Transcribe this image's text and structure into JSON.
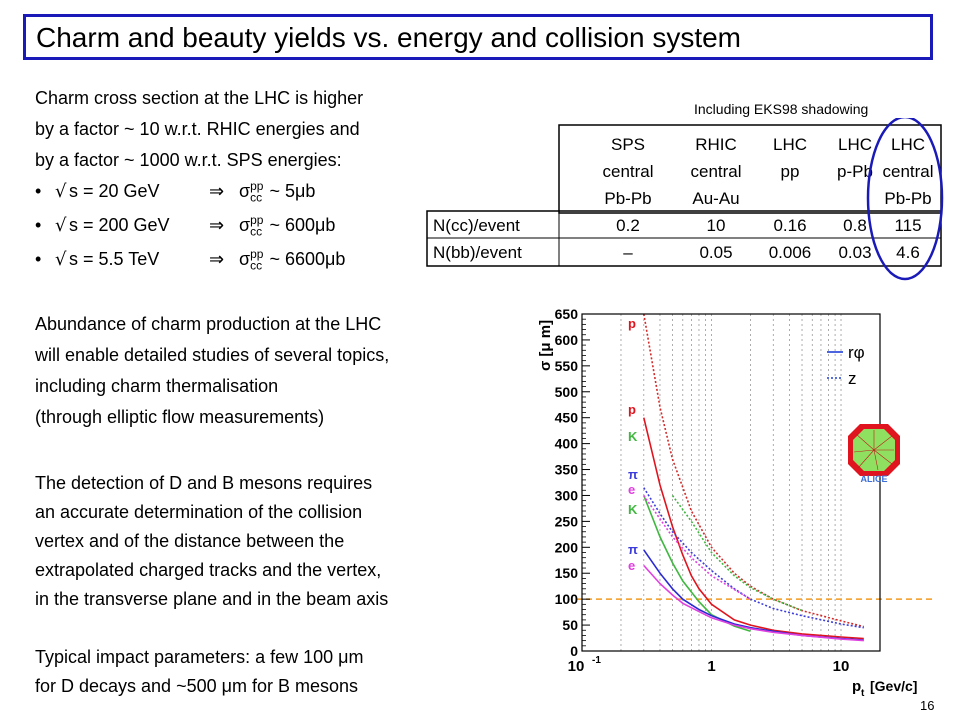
{
  "title": "Charm and beauty yields vs. energy and collision system",
  "intro_lines": [
    "Charm cross section at the LHC is higher",
    "by a factor ~ 10 w.r.t. RHIC energies and",
    "by a factor ~ 1000 w.r.t. SPS energies:"
  ],
  "bullets": [
    {
      "energy": "s = 20 GeV",
      "sub": "cc",
      "sup": "pp",
      "value": "~ 5 ",
      "unit": "b"
    },
    {
      "energy": "s = 200 GeV",
      "sub": "cc",
      "sup": "pp",
      "value": "~ 600 ",
      "unit": "b"
    },
    {
      "energy": "s = 5.5 TeV",
      "sub": "cc",
      "sup": "pp",
      "value": "~ 6600 ",
      "unit": "b"
    }
  ],
  "abundance_lines": [
    "Abundance of charm production at the LHC",
    "will enable detailed studies of several topics,",
    "including charm thermalisation",
    "(through elliptic flow measurements)"
  ],
  "detection_lines": [
    "The detection of D and B mesons requires",
    "an accurate determination of the collision",
    "vertex and of the distance between the",
    "extrapolated charged tracks and the vertex,",
    "in the transverse plane and in the beam axis"
  ],
  "impact_lines": [
    {
      "pre": "Typical impact parameters: a few 100 ",
      "post": "m"
    },
    {
      "pre": "for D decays and ~500 ",
      "post": "m for B mesons"
    }
  ],
  "eks_note": "Including EKS98 shadowing",
  "table": {
    "headers": [
      [
        "SPS",
        "central",
        "Pb-Pb"
      ],
      [
        "RHIC",
        "central",
        "Au-Au"
      ],
      [
        "LHC",
        "pp",
        ""
      ],
      [
        "LHC",
        "p-Pb",
        ""
      ],
      [
        "LHC",
        "central",
        "Pb-Pb"
      ]
    ],
    "rows": [
      {
        "label": "N(cc)/event",
        "values": [
          "0.2",
          "10",
          "0.16",
          "0.8",
          "115"
        ]
      },
      {
        "label": "N(bb)/event",
        "values": [
          "–",
          "0.05",
          "0.006",
          "0.03",
          "4.6"
        ]
      }
    ]
  },
  "slide_number": "16",
  "chart_data": {
    "type": "line",
    "xlabel": "p",
    "xlabel_sub": "t",
    "xlabel_unit": "[Gev/c]",
    "ylabel": "σ [μ m]",
    "x_scale": "log",
    "xlim": [
      0.1,
      20
    ],
    "ylim": [
      0,
      650
    ],
    "x_tick_labels": [
      "10",
      "1",
      "10"
    ],
    "x_tick_sup": "-1",
    "y_ticks": [
      0,
      50,
      100,
      150,
      200,
      250,
      300,
      350,
      400,
      450,
      500,
      550,
      600,
      650
    ],
    "grid": "vertical dotted",
    "legend": [
      {
        "name": "rφ",
        "style": "solid",
        "color": "#1f3fd6"
      },
      {
        "name": "z",
        "style": "dotted",
        "color": "#1f3fd6"
      }
    ],
    "reference_line": {
      "y": 100,
      "color": "#f39a1e",
      "style": "dashed"
    },
    "series": [
      {
        "label": "p",
        "style": "dotted",
        "color": "#d42a2a",
        "points": [
          [
            0.3,
            650
          ],
          [
            0.4,
            470
          ],
          [
            0.5,
            370
          ],
          [
            0.7,
            270
          ],
          [
            1,
            200
          ],
          [
            1.5,
            150
          ],
          [
            2,
            125
          ],
          [
            3,
            100
          ],
          [
            5,
            78
          ],
          [
            10,
            58
          ],
          [
            15,
            47
          ]
        ]
      },
      {
        "label": "p",
        "style": "solid",
        "color": "#e0141e",
        "points": [
          [
            0.3,
            450
          ],
          [
            0.4,
            320
          ],
          [
            0.5,
            240
          ],
          [
            0.6,
            185
          ],
          [
            0.7,
            145
          ],
          [
            0.8,
            120
          ],
          [
            1,
            90
          ],
          [
            1.5,
            60
          ],
          [
            2,
            50
          ],
          [
            3,
            40
          ],
          [
            5,
            33
          ],
          [
            10,
            27
          ],
          [
            15,
            24
          ]
        ]
      },
      {
        "label": "K",
        "style": "dotted",
        "color": "#3fb83f",
        "points": [
          [
            0.5,
            300
          ],
          [
            0.7,
            250
          ],
          [
            1,
            190
          ],
          [
            1.5,
            145
          ],
          [
            2,
            122
          ],
          [
            3,
            100
          ],
          [
            5,
            78
          ]
        ]
      },
      {
        "label": "K",
        "style": "solid",
        "color": "#3fb83f",
        "points": [
          [
            0.3,
            300
          ],
          [
            0.4,
            220
          ],
          [
            0.5,
            170
          ],
          [
            0.6,
            135
          ],
          [
            0.8,
            95
          ],
          [
            1,
            70
          ],
          [
            1.5,
            48
          ],
          [
            2,
            38
          ]
        ]
      },
      {
        "label": "π",
        "style": "dotted",
        "color": "#3d3ddb",
        "points": [
          [
            0.3,
            315
          ],
          [
            0.4,
            265
          ],
          [
            0.5,
            230
          ],
          [
            0.7,
            190
          ],
          [
            1,
            155
          ],
          [
            1.5,
            120
          ],
          [
            2,
            100
          ],
          [
            3,
            82
          ],
          [
            5,
            68
          ],
          [
            10,
            52
          ],
          [
            15,
            45
          ]
        ]
      },
      {
        "label": "e",
        "style": "dotted",
        "color": "#e040e0",
        "points": [
          [
            0.3,
            300
          ],
          [
            0.5,
            220
          ],
          [
            0.7,
            180
          ],
          [
            1,
            145
          ],
          [
            2,
            100
          ]
        ]
      },
      {
        "label": "π",
        "style": "solid",
        "color": "#2a2ad4",
        "points": [
          [
            0.3,
            195
          ],
          [
            0.4,
            150
          ],
          [
            0.5,
            120
          ],
          [
            0.6,
            100
          ],
          [
            0.8,
            80
          ],
          [
            1,
            68
          ],
          [
            1.5,
            52
          ],
          [
            2,
            45
          ],
          [
            3,
            38
          ],
          [
            5,
            30
          ],
          [
            10,
            24
          ],
          [
            15,
            21
          ]
        ]
      },
      {
        "label": "e",
        "style": "solid",
        "color": "#e040e0",
        "points": [
          [
            0.3,
            165
          ],
          [
            0.4,
            130
          ],
          [
            0.5,
            108
          ],
          [
            0.6,
            92
          ],
          [
            0.8,
            76
          ],
          [
            1,
            64
          ],
          [
            1.5,
            50
          ],
          [
            2,
            43
          ],
          [
            3,
            36
          ],
          [
            5,
            30
          ],
          [
            10,
            23
          ],
          [
            15,
            20
          ]
        ]
      }
    ],
    "curve_labels": [
      {
        "text": "p",
        "color": "#e0141e"
      },
      {
        "text": "p",
        "color": "#e0141e"
      },
      {
        "text": "K",
        "color": "#3fb83f"
      },
      {
        "text": "π",
        "color": "#3d3ddb"
      },
      {
        "text": "e",
        "color": "#e040e0"
      },
      {
        "text": "K",
        "color": "#3fb83f"
      },
      {
        "text": "π",
        "color": "#3d3ddb"
      },
      {
        "text": "e",
        "color": "#e040e0"
      }
    ]
  }
}
